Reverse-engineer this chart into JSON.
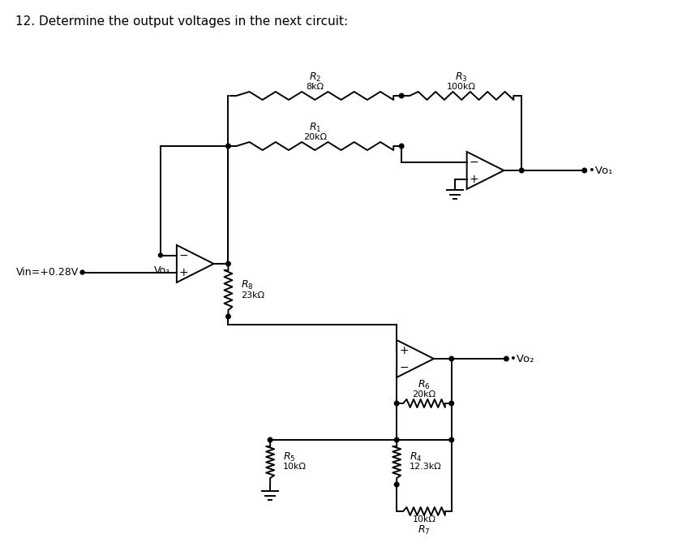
{
  "title": "12. Determine the output voltages in the next circuit:",
  "bg_color": "#ffffff",
  "line_color": "#000000",
  "text_color": "#000000",
  "fig_width": 8.41,
  "fig_height": 6.9,
  "lw": 1.4,
  "components": {
    "R1": "20kΩ",
    "R2": "8kΩ",
    "R3": "100kΩ",
    "R4": "12.3kΩ",
    "R5": "10kΩ",
    "R6": "20kΩ",
    "R7": "10kΩ",
    "R8": "23kΩ",
    "Vin": "Vin=+0.28V",
    "Vo1": "•Vo₁",
    "Vo2": "•Vo₂",
    "Vo3": "Vo₃"
  }
}
